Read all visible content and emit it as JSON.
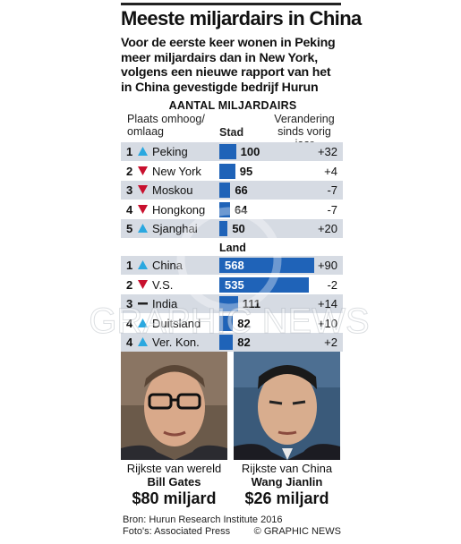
{
  "title": "Meeste miljardairs in China",
  "subtitle_lines": [
    "Voor de eerste keer wonen in Peking",
    "meer miljardairs dan in New York,",
    "volgens een nieuwe rapport van het",
    "in China gevestigde bedrijf Hurun"
  ],
  "section_title": "AANTAL MILJARDAIRS",
  "headers": {
    "rank_line1": "Plaats omhoog/",
    "rank_line2": "omlaag",
    "middle_stad": "Stad",
    "middle_land": "Land",
    "change_line1": "Verandering",
    "change_line2": "sinds vorig jaar"
  },
  "colors": {
    "up": "#2aa8e0",
    "down": "#c8102e",
    "bar": "#1f63b8",
    "stripe": "#d6dbe3"
  },
  "chart_data": [
    {
      "type": "bar",
      "group": "Stad",
      "categories": [
        "Peking",
        "New York",
        "Moskou",
        "Hongkong",
        "Sjanghai"
      ],
      "values": [
        100,
        95,
        66,
        64,
        50
      ],
      "rank": [
        "1",
        "2",
        "3",
        "4",
        "5"
      ],
      "direction": [
        "up",
        "down",
        "down",
        "down",
        "up"
      ],
      "change": [
        "+32",
        "+4",
        "-7",
        "-7",
        "+20"
      ]
    },
    {
      "type": "bar",
      "group": "Land",
      "categories": [
        "China",
        "V.S.",
        "India",
        "Duitsland",
        "Ver. Kon."
      ],
      "values": [
        568,
        535,
        111,
        82,
        82
      ],
      "rank": [
        "1",
        "2",
        "3",
        "4",
        "4"
      ],
      "direction": [
        "up",
        "down",
        "same",
        "up",
        "up"
      ],
      "change": [
        "+90",
        "-2",
        "+14",
        "+10",
        "+2"
      ]
    }
  ],
  "people": [
    {
      "caption": "Rijkste van wereld",
      "name": "Bill Gates",
      "amount": "$80 miljard",
      "photo_icon": "bill-gates-portrait"
    },
    {
      "caption": "Rijkste van China",
      "name": "Wang Jianlin",
      "amount": "$26 miljard",
      "photo_icon": "wang-jianlin-portrait"
    }
  ],
  "footer": {
    "source": "Bron: Hurun Research Institute 2016",
    "photos": "Foto's: Associated Press",
    "credit": "© GRAPHIC NEWS"
  },
  "watermark": "GRAPHIC NEWS"
}
